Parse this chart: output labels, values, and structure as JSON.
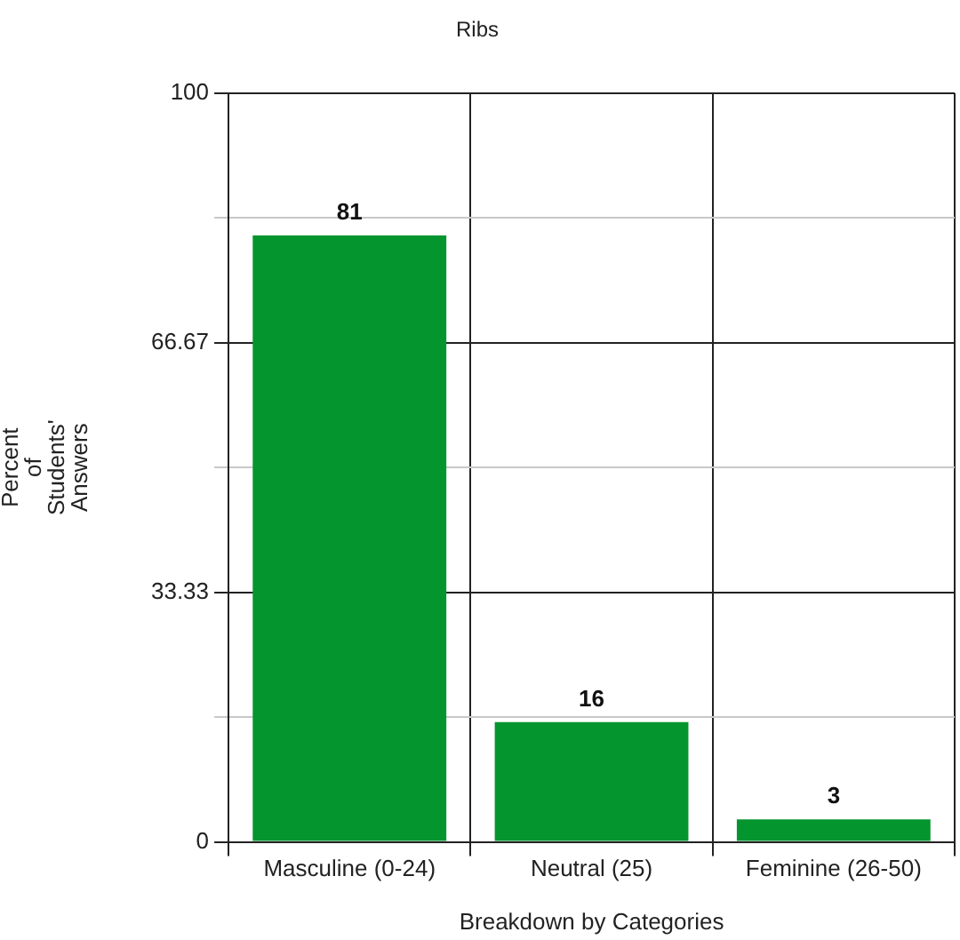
{
  "chart_data": {
    "type": "bar",
    "title": "Ribs",
    "xlabel": "Breakdown by Categories",
    "ylabel": "Percent of Students' Answers",
    "categories": [
      "Masculine (0-24)",
      "Neutral (25)",
      "Feminine (26-50)"
    ],
    "values": [
      81,
      16,
      3
    ],
    "color": "#05952f",
    "ylim": [
      0,
      100
    ],
    "yticks": [
      0,
      {
        "value": 16.67,
        "label": null
      },
      33.33,
      {
        "value": 50,
        "label": null
      },
      66.67,
      {
        "value": 83.33,
        "label": null
      },
      100
    ],
    "grid": true,
    "legend": false,
    "data_labels": true
  }
}
